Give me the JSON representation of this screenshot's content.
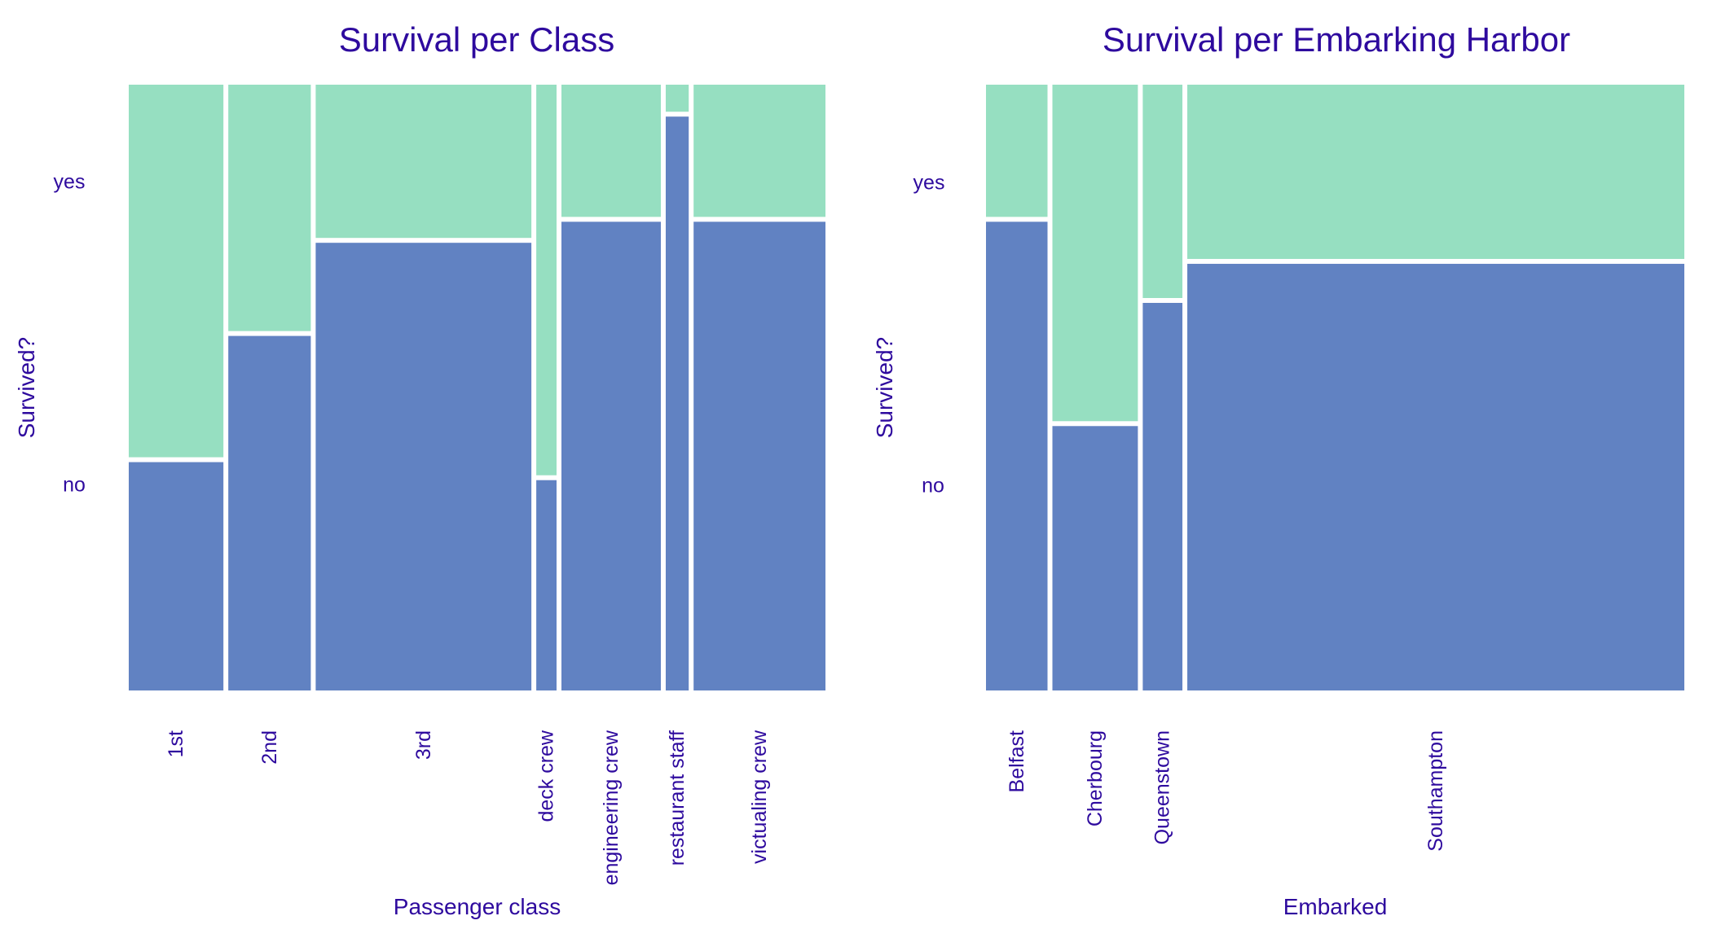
{
  "colors": {
    "no": "#6182C2",
    "yes": "#96DFC1",
    "text": "#2E0A9E",
    "background": "#FFFFFF"
  },
  "chart_data": [
    {
      "type": "mosaic",
      "title": "Survival  per Class",
      "xlabel": "Passenger class",
      "ylabel": "Survived?",
      "y_levels": [
        "no",
        "yes"
      ],
      "categories": [
        "1st",
        "2nd",
        "3rd",
        "deck crew",
        "engineering crew",
        "restaurant staff",
        "victualing crew"
      ],
      "category_shares": [
        0.14,
        0.122,
        0.319,
        0.03,
        0.147,
        0.034,
        0.195
      ],
      "no_fraction": [
        0.38,
        0.59,
        0.745,
        0.35,
        0.78,
        0.955,
        0.78
      ]
    },
    {
      "type": "mosaic",
      "title": "Survival per Embarking Harbor",
      "xlabel": "Embarked",
      "ylabel": "Survived?",
      "y_levels": [
        "no",
        "yes"
      ],
      "categories": [
        "Belfast",
        "Cherbourg",
        "Queenstown",
        "Southampton"
      ],
      "category_shares": [
        0.09,
        0.125,
        0.058,
        0.727
      ],
      "no_fraction": [
        0.78,
        0.44,
        0.645,
        0.71
      ]
    }
  ]
}
